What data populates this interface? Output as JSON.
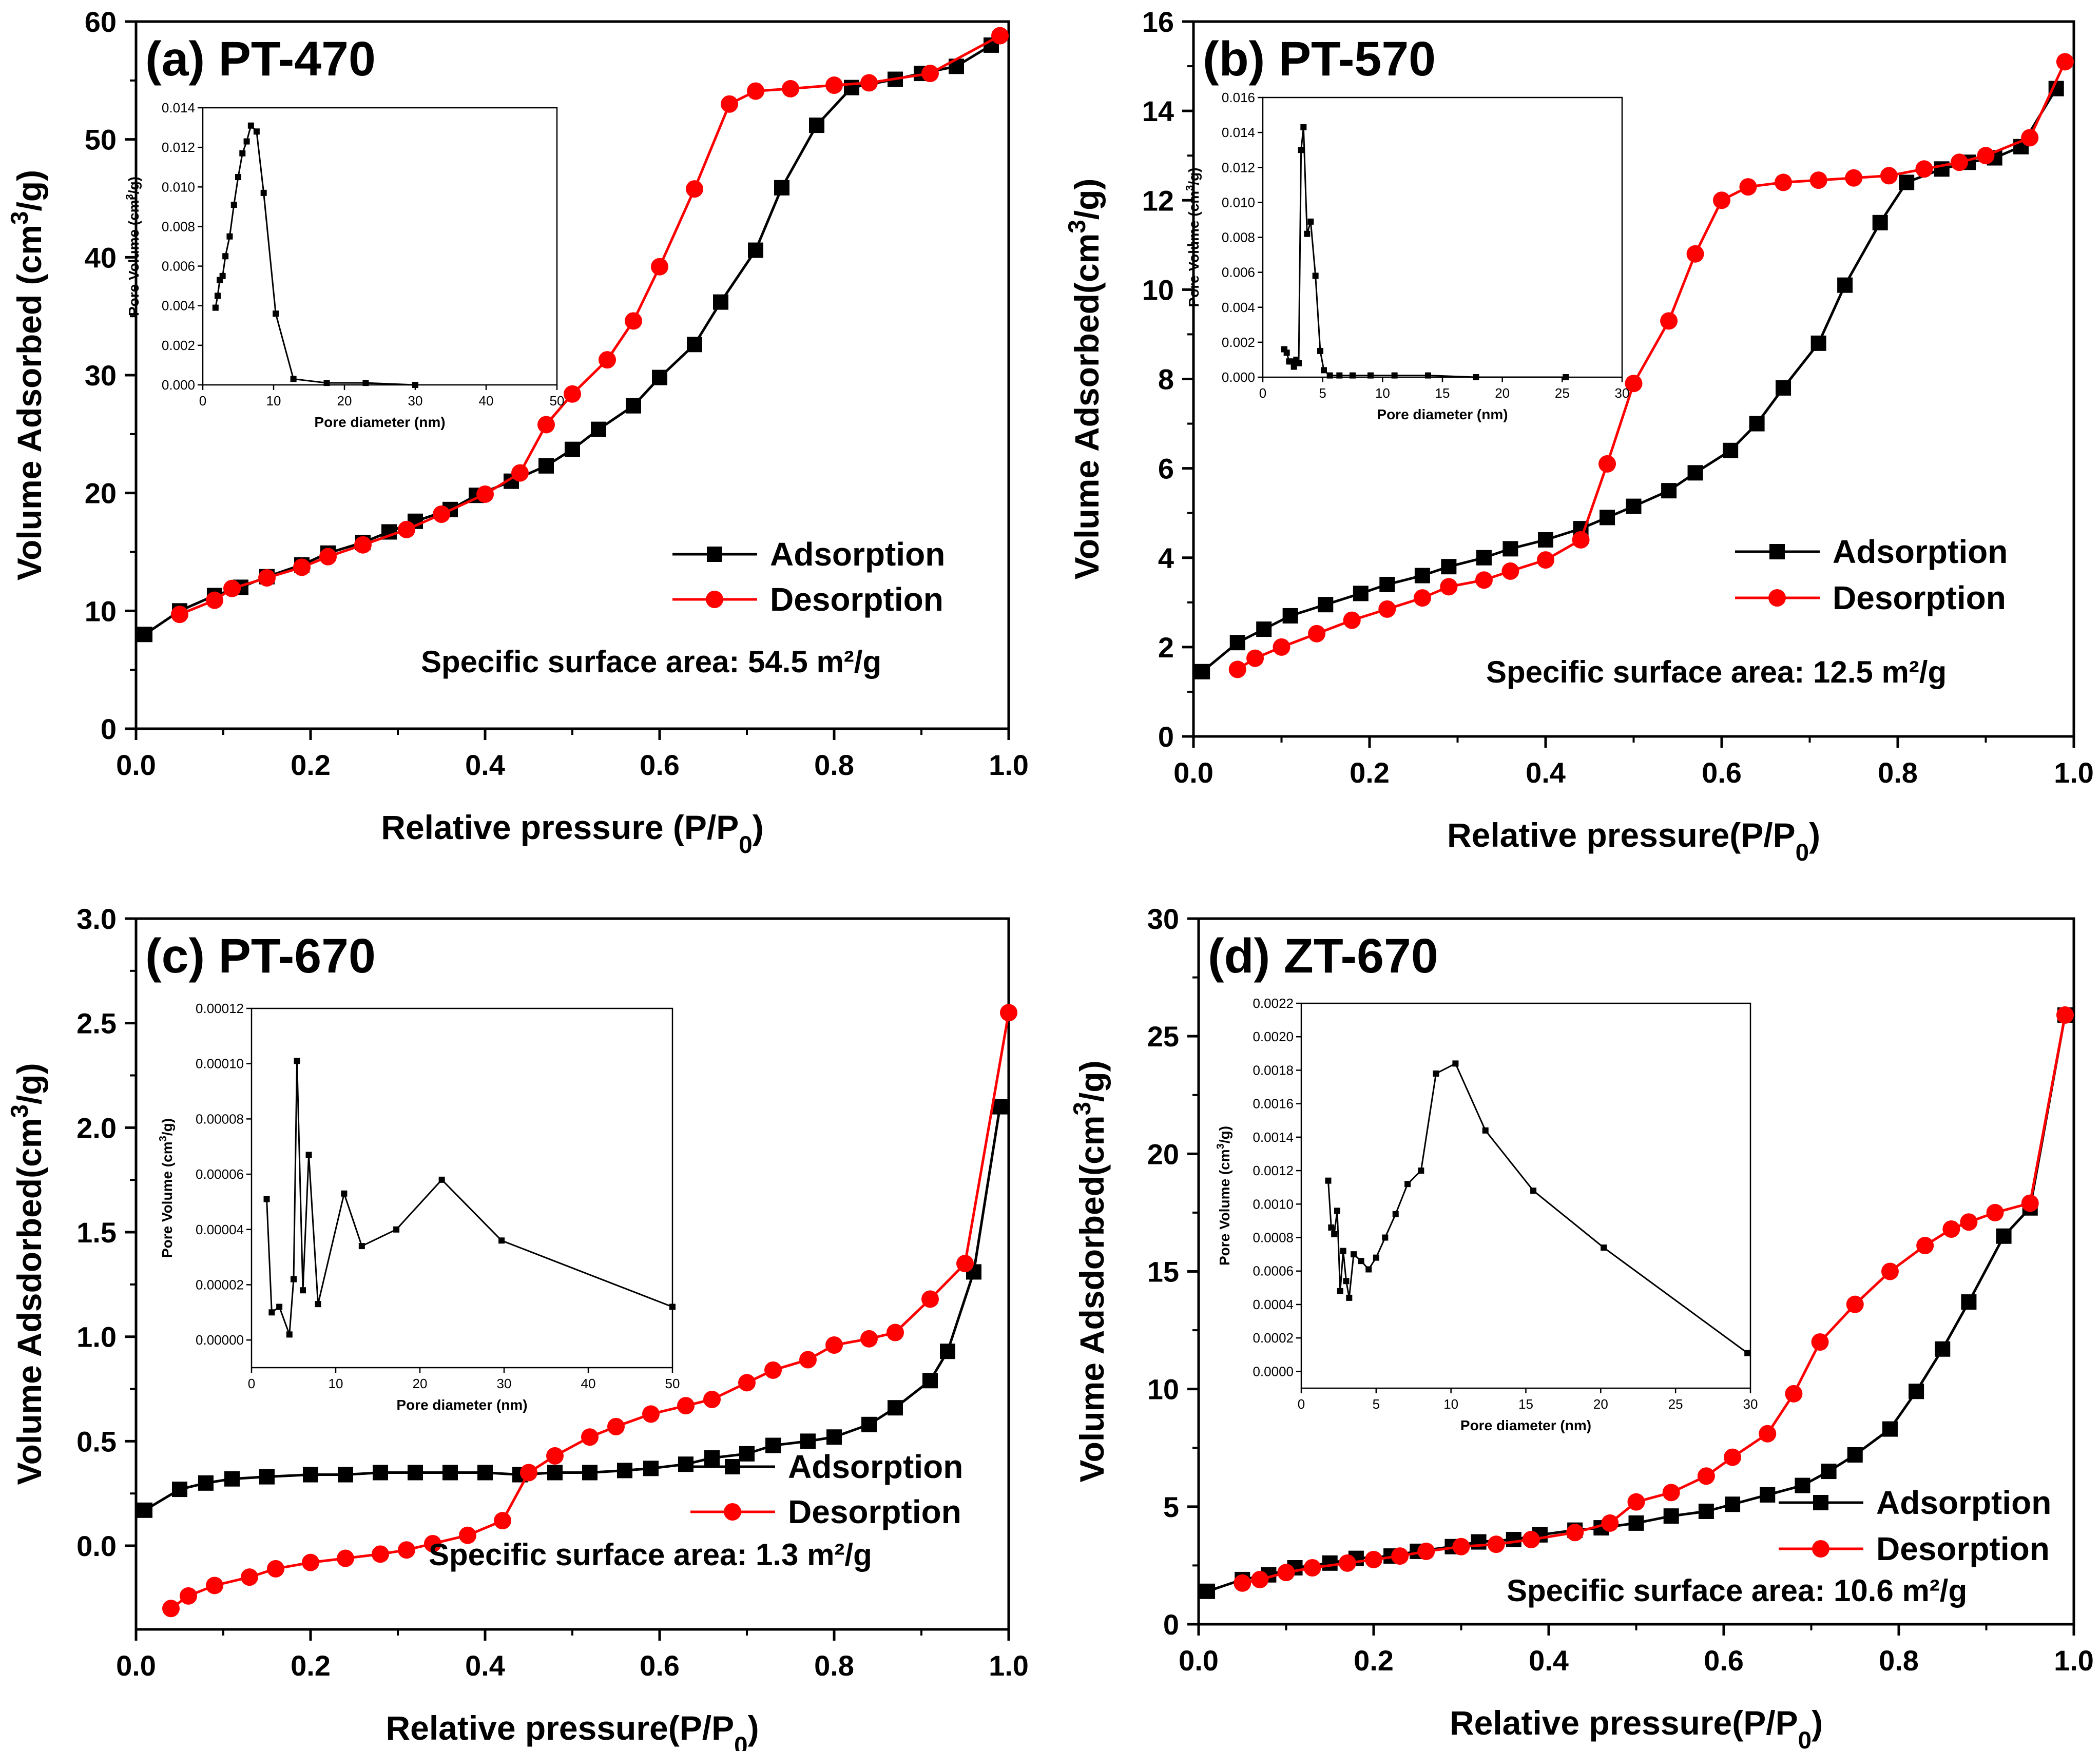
{
  "figure": {
    "type": "bet_isotherm_grid",
    "panel_count": 4
  },
  "colors": {
    "adsorption": "#000000",
    "desorption": "#ff0000",
    "inset": "#000000",
    "axis": "#000000"
  },
  "chart_data": [
    {
      "id": "a",
      "type": "line",
      "title": "(a) PT-470",
      "xlabel": "Relative pressure (P/P0)",
      "ylabel": "Volume Adsorbed (cm3/g)",
      "xlim": [
        0.0,
        1.0
      ],
      "ylim": [
        0,
        60
      ],
      "xticks": [
        "0.0",
        "0.2",
        "0.4",
        "0.6",
        "0.8",
        "1.0"
      ],
      "yticks": [
        "0",
        "10",
        "20",
        "30",
        "40",
        "50",
        "60"
      ],
      "legend": {
        "position": "center-right",
        "adsorption": "Adsorption",
        "desorption": "Desorption"
      },
      "annotation": "Specific surface area: 54.5 m²/g",
      "series": [
        {
          "name": "Adsorption",
          "color": "#000000",
          "marker": "square",
          "x": [
            0.01,
            0.05,
            0.09,
            0.12,
            0.15,
            0.19,
            0.22,
            0.26,
            0.29,
            0.32,
            0.36,
            0.39,
            0.43,
            0.47,
            0.5,
            0.53,
            0.57,
            0.6,
            0.64,
            0.67,
            0.71,
            0.74,
            0.78,
            0.82,
            0.87,
            0.9,
            0.94,
            0.98
          ],
          "y": [
            8.0,
            10.0,
            11.3,
            12.0,
            12.9,
            13.9,
            14.9,
            15.8,
            16.7,
            17.6,
            18.6,
            19.8,
            21.0,
            22.3,
            23.7,
            25.4,
            27.4,
            29.8,
            32.6,
            36.2,
            40.6,
            45.9,
            51.2,
            54.4,
            55.1,
            55.6,
            56.2,
            58.0
          ]
        },
        {
          "name": "Desorption",
          "color": "#ff0000",
          "marker": "circle",
          "x": [
            0.99,
            0.91,
            0.84,
            0.8,
            0.75,
            0.71,
            0.68,
            0.64,
            0.6,
            0.57,
            0.54,
            0.5,
            0.47,
            0.44,
            0.4,
            0.35,
            0.31,
            0.26,
            0.22,
            0.19,
            0.15,
            0.11,
            0.09,
            0.05
          ],
          "y": [
            58.8,
            55.6,
            54.8,
            54.6,
            54.3,
            54.1,
            53.0,
            45.8,
            39.2,
            34.6,
            31.3,
            28.4,
            25.8,
            21.7,
            19.9,
            18.2,
            16.9,
            15.6,
            14.6,
            13.7,
            12.8,
            11.9,
            10.9,
            9.7
          ]
        }
      ],
      "inset": {
        "xlabel": "Pore diameter (nm)",
        "ylabel": "Pore Volume (cm3/g)",
        "xlim": [
          0,
          50
        ],
        "ylim": [
          0,
          0.014
        ],
        "xticks": [
          "0",
          "10",
          "20",
          "30",
          "40",
          "50"
        ],
        "yticks": [
          "0.000",
          "0.002",
          "0.004",
          "0.006",
          "0.008",
          "0.010",
          "0.012",
          "0.014"
        ],
        "x": [
          1.8,
          2.1,
          2.4,
          2.8,
          3.2,
          3.8,
          4.4,
          5.0,
          5.6,
          6.2,
          6.8,
          7.6,
          8.6,
          10.3,
          12.8,
          17.5,
          23.0,
          30.0
        ],
        "y": [
          0.0039,
          0.0045,
          0.0053,
          0.0055,
          0.0065,
          0.0075,
          0.0091,
          0.0105,
          0.0117,
          0.0123,
          0.0131,
          0.0128,
          0.0097,
          0.0036,
          0.0003,
          0.0001,
          0.0001,
          0.0
        ]
      }
    },
    {
      "id": "b",
      "type": "line",
      "title": "(b) PT-570",
      "xlabel": "Relative pressure(P/P0)",
      "ylabel": "Volume Adsorbed(cm3/g)",
      "xlim": [
        0.0,
        1.0
      ],
      "ylim": [
        0,
        16
      ],
      "xticks": [
        "0.0",
        "0.2",
        "0.4",
        "0.6",
        "0.8",
        "1.0"
      ],
      "yticks": [
        "0",
        "2",
        "4",
        "6",
        "8",
        "10",
        "12",
        "14",
        "16"
      ],
      "legend": {
        "position": "center-right",
        "adsorption": "Adsorption",
        "desorption": "Desorption"
      },
      "annotation": "Specific surface area: 12.5 m²/g",
      "series": [
        {
          "name": "Adsorption",
          "color": "#000000",
          "marker": "square",
          "x": [
            0.01,
            0.05,
            0.08,
            0.11,
            0.15,
            0.19,
            0.22,
            0.26,
            0.29,
            0.33,
            0.36,
            0.4,
            0.44,
            0.47,
            0.5,
            0.54,
            0.57,
            0.61,
            0.64,
            0.67,
            0.71,
            0.74,
            0.78,
            0.81,
            0.85,
            0.88,
            0.91,
            0.94,
            0.98
          ],
          "y": [
            1.45,
            2.1,
            2.4,
            2.7,
            2.95,
            3.2,
            3.4,
            3.6,
            3.8,
            4.0,
            4.2,
            4.4,
            4.65,
            4.9,
            5.15,
            5.5,
            5.9,
            6.4,
            7.0,
            7.8,
            8.8,
            10.1,
            11.5,
            12.4,
            12.7,
            12.85,
            12.95,
            13.2,
            14.5
          ]
        },
        {
          "name": "Desorption",
          "color": "#ff0000",
          "marker": "circle",
          "x": [
            0.99,
            0.95,
            0.9,
            0.87,
            0.83,
            0.79,
            0.75,
            0.71,
            0.67,
            0.63,
            0.6,
            0.57,
            0.54,
            0.5,
            0.47,
            0.44,
            0.4,
            0.36,
            0.33,
            0.29,
            0.26,
            0.22,
            0.18,
            0.14,
            0.1,
            0.07,
            0.05
          ],
          "y": [
            15.1,
            13.4,
            13.0,
            12.85,
            12.7,
            12.55,
            12.5,
            12.45,
            12.4,
            12.3,
            12.0,
            10.8,
            9.3,
            7.9,
            6.1,
            4.4,
            3.95,
            3.7,
            3.5,
            3.35,
            3.1,
            2.85,
            2.6,
            2.3,
            2.0,
            1.75,
            1.5
          ]
        }
      ],
      "inset": {
        "xlabel": "Pore diameter (nm)",
        "ylabel": "Pore Volume (cm3/g)",
        "xlim": [
          0,
          30
        ],
        "ylim": [
          0,
          0.016
        ],
        "xticks": [
          "0",
          "5",
          "10",
          "15",
          "20",
          "25",
          "30"
        ],
        "yticks": [
          "0.000",
          "0.002",
          "0.004",
          "0.006",
          "0.008",
          "0.010",
          "0.012",
          "0.014",
          "0.016"
        ],
        "x": [
          1.8,
          2.0,
          2.2,
          2.4,
          2.6,
          2.8,
          3.0,
          3.2,
          3.4,
          3.7,
          4.0,
          4.4,
          4.8,
          5.1,
          5.6,
          6.4,
          7.5,
          9.0,
          11.0,
          13.8,
          17.8,
          25.3
        ],
        "y": [
          0.0016,
          0.0014,
          0.0009,
          0.0009,
          0.0006,
          0.001,
          0.0008,
          0.013,
          0.0143,
          0.0082,
          0.0089,
          0.0058,
          0.0015,
          0.0004,
          0.0001,
          0.0001,
          0.0001,
          0.0001,
          0.0001,
          0.0001,
          0.0,
          0.0
        ]
      }
    },
    {
      "id": "c",
      "type": "line",
      "title": "(c) PT-670",
      "xlabel": "Relative pressure(P/P0)",
      "ylabel": "Volume Adsdorbed(cm3/g)",
      "xlim": [
        0.0,
        1.0
      ],
      "ylim": [
        -0.4,
        3.0
      ],
      "xticks": [
        "0.0",
        "0.2",
        "0.4",
        "0.6",
        "0.8",
        "1.0"
      ],
      "yticks": [
        "0.0",
        "0.5",
        "1.0",
        "1.5",
        "2.0",
        "2.5",
        "3.0"
      ],
      "legend": {
        "position": "center-right",
        "adsorption": "Adsorption",
        "desorption": "Desorption"
      },
      "annotation": "Specific surface area: 1.3 m²/g",
      "series": [
        {
          "name": "Adsorption",
          "color": "#000000",
          "marker": "square",
          "x": [
            0.01,
            0.05,
            0.08,
            0.11,
            0.15,
            0.2,
            0.24,
            0.28,
            0.32,
            0.36,
            0.4,
            0.44,
            0.48,
            0.52,
            0.56,
            0.59,
            0.63,
            0.66,
            0.7,
            0.73,
            0.77,
            0.8,
            0.84,
            0.87,
            0.91,
            0.93,
            0.96,
            0.99
          ],
          "y": [
            0.17,
            0.27,
            0.3,
            0.32,
            0.33,
            0.34,
            0.34,
            0.35,
            0.35,
            0.35,
            0.35,
            0.34,
            0.35,
            0.35,
            0.36,
            0.37,
            0.39,
            0.42,
            0.44,
            0.48,
            0.5,
            0.52,
            0.58,
            0.66,
            0.79,
            0.93,
            1.31,
            2.1
          ]
        },
        {
          "name": "Desorption",
          "color": "#ff0000",
          "marker": "circle",
          "x": [
            1.0,
            0.95,
            0.91,
            0.87,
            0.84,
            0.8,
            0.77,
            0.73,
            0.7,
            0.66,
            0.63,
            0.59,
            0.55,
            0.52,
            0.48,
            0.45,
            0.42,
            0.38,
            0.34,
            0.31,
            0.28,
            0.24,
            0.2,
            0.16,
            0.13,
            0.09,
            0.06,
            0.04
          ],
          "y": [
            2.55,
            1.35,
            1.18,
            1.02,
            0.99,
            0.96,
            0.89,
            0.84,
            0.78,
            0.7,
            0.67,
            0.63,
            0.57,
            0.52,
            0.43,
            0.35,
            0.12,
            0.05,
            0.01,
            -0.02,
            -0.04,
            -0.06,
            -0.08,
            -0.11,
            -0.15,
            -0.19,
            -0.24,
            -0.3
          ]
        }
      ],
      "inset": {
        "xlabel": "Pore diameter (nm)",
        "ylabel": "Pore Volume (cm3/g)",
        "xlim": [
          0,
          50
        ],
        "ylim": [
          -1e-05,
          0.00012
        ],
        "xticks": [
          "0",
          "10",
          "20",
          "30",
          "40",
          "50"
        ],
        "yticks": [
          "0.00000",
          "0.00002",
          "0.00004",
          "0.00006",
          "0.00008",
          "0.00010",
          "0.00012"
        ],
        "x": [
          1.8,
          2.4,
          3.3,
          4.5,
          5.0,
          5.4,
          6.1,
          6.8,
          7.9,
          11.0,
          13.1,
          17.2,
          22.6,
          29.7,
          50.0
        ],
        "y": [
          5.1e-05,
          1e-05,
          1.2e-05,
          2e-06,
          2.2e-05,
          0.000101,
          1.8e-05,
          6.7e-05,
          1.3e-05,
          5.3e-05,
          3.4e-05,
          4e-05,
          5.8e-05,
          3.6e-05,
          1.2e-05
        ]
      }
    },
    {
      "id": "d",
      "type": "line",
      "title": "(d) ZT-670",
      "xlabel": "Relative pressure(P/P0)",
      "ylabel": "Volume Adsdorbed(cm3/g)",
      "xlim": [
        0.0,
        1.0
      ],
      "ylim": [
        0,
        30
      ],
      "xticks": [
        "0.0",
        "0.2",
        "0.4",
        "0.6",
        "0.8",
        "1.0"
      ],
      "yticks": [
        "0",
        "5",
        "10",
        "15",
        "20",
        "25",
        "30"
      ],
      "legend": {
        "position": "bottom-right",
        "adsorption": "Adsorption",
        "desorption": "Desorption"
      },
      "annotation": "Specific surface area: 10.6 m²/g",
      "series": [
        {
          "name": "Adsorption",
          "color": "#000000",
          "marker": "square",
          "x": [
            0.01,
            0.05,
            0.08,
            0.11,
            0.15,
            0.18,
            0.22,
            0.25,
            0.29,
            0.32,
            0.36,
            0.39,
            0.43,
            0.46,
            0.5,
            0.54,
            0.58,
            0.61,
            0.65,
            0.69,
            0.72,
            0.75,
            0.79,
            0.82,
            0.85,
            0.88,
            0.92,
            0.95,
            0.99
          ],
          "y": [
            1.4,
            1.9,
            2.1,
            2.4,
            2.6,
            2.8,
            2.9,
            3.1,
            3.3,
            3.5,
            3.6,
            3.8,
            4.0,
            4.1,
            4.3,
            4.6,
            4.8,
            5.1,
            5.5,
            5.9,
            6.5,
            7.2,
            8.3,
            9.9,
            11.7,
            13.7,
            16.5,
            17.7,
            25.9
          ]
        },
        {
          "name": "Desorption",
          "color": "#ff0000",
          "marker": "circle",
          "x": [
            0.99,
            0.95,
            0.91,
            0.88,
            0.86,
            0.83,
            0.79,
            0.75,
            0.71,
            0.68,
            0.65,
            0.61,
            0.58,
            0.54,
            0.5,
            0.47,
            0.43,
            0.38,
            0.34,
            0.3,
            0.26,
            0.23,
            0.2,
            0.17,
            0.13,
            0.1,
            0.07,
            0.05
          ],
          "y": [
            25.9,
            17.9,
            17.5,
            17.1,
            16.8,
            16.1,
            15.0,
            13.6,
            12.0,
            9.8,
            8.1,
            7.1,
            6.3,
            5.6,
            5.2,
            4.3,
            3.9,
            3.6,
            3.4,
            3.3,
            3.1,
            2.9,
            2.75,
            2.6,
            2.4,
            2.2,
            1.9,
            1.75
          ]
        }
      ],
      "inset": {
        "xlabel": "Pore diameter (nm)",
        "ylabel": "Pore Volume (cm3/g)",
        "xlim": [
          0,
          30
        ],
        "ylim": [
          -0.0001,
          0.0022
        ],
        "xticks": [
          "0",
          "5",
          "10",
          "15",
          "20",
          "25",
          "30"
        ],
        "yticks": [
          "0.0000",
          "0.0002",
          "0.0004",
          "0.0006",
          "0.0008",
          "0.0010",
          "0.0012",
          "0.0014",
          "0.0016",
          "0.0018",
          "0.0020",
          "0.0022"
        ],
        "x": [
          1.8,
          2.0,
          2.2,
          2.4,
          2.6,
          2.8,
          3.0,
          3.2,
          3.5,
          4.0,
          4.5,
          5.0,
          5.6,
          6.3,
          7.1,
          8.0,
          9.0,
          10.3,
          12.3,
          15.5,
          20.2,
          29.8
        ],
        "y": [
          0.00114,
          0.00086,
          0.00082,
          0.00096,
          0.00048,
          0.00072,
          0.00054,
          0.00044,
          0.0007,
          0.00066,
          0.00061,
          0.00068,
          0.0008,
          0.00094,
          0.00112,
          0.0012,
          0.00178,
          0.00184,
          0.00144,
          0.00108,
          0.00074,
          0.00011
        ]
      }
    }
  ]
}
